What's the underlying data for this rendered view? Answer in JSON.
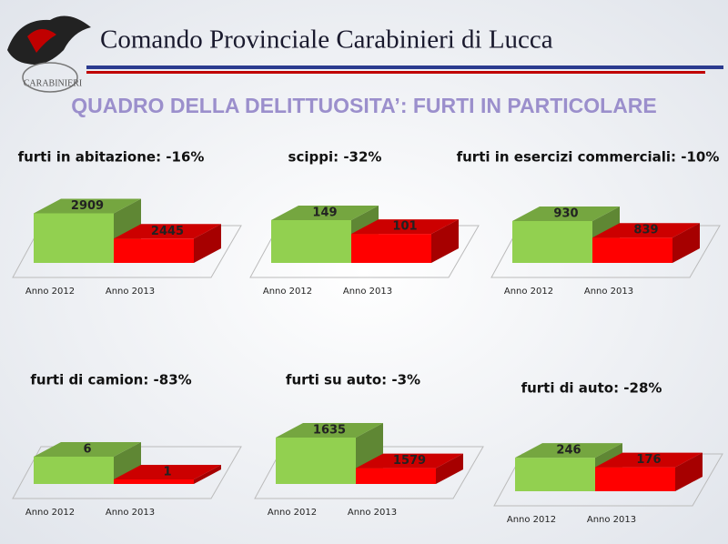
{
  "header": {
    "title": "Comando Provinciale Carabinieri di Lucca",
    "logo_text": "CARABINIERI",
    "subtitle": "QUADRO DELLA DELITTUOSITA’: FURTI IN PARTICOLARE"
  },
  "chart_data": [
    {
      "type": "bar",
      "title": "furti in abitazione: -16%",
      "categories": [
        "Anno 2012",
        "Anno 2013"
      ],
      "values": [
        2909,
        2445
      ],
      "colors": [
        "#92d050",
        "#ff0000"
      ],
      "ylim": [
        2000,
        3000
      ]
    },
    {
      "type": "bar",
      "title": "scippi: -32%",
      "categories": [
        "Anno 2012",
        "Anno 2013"
      ],
      "values": [
        149,
        101
      ],
      "colors": [
        "#92d050",
        "#ff0000"
      ],
      "ylim": [
        0,
        190
      ]
    },
    {
      "type": "bar",
      "title": "furti in esercizi commerciali: -10%",
      "categories": [
        "Anno 2012",
        "Anno 2013"
      ],
      "values": [
        930,
        839
      ],
      "colors": [
        "#92d050",
        "#ff0000"
      ],
      "ylim": [
        700,
        1000
      ]
    },
    {
      "type": "bar",
      "title": "furti di camion: -83%",
      "categories": [
        "Anno 2012",
        "Anno 2013"
      ],
      "values": [
        6,
        1
      ],
      "colors": [
        "#92d050",
        "#ff0000"
      ],
      "ylim": [
        0,
        12
      ]
    },
    {
      "type": "bar",
      "title": "furti su auto: -3%",
      "categories": [
        "Anno 2012",
        "Anno 2013"
      ],
      "values": [
        1635,
        1579
      ],
      "colors": [
        "#92d050",
        "#ff0000"
      ],
      "ylim": [
        1550,
        1650
      ]
    },
    {
      "type": "bar",
      "title": "furti di auto: -28%",
      "categories": [
        "Anno 2012",
        "Anno 2013"
      ],
      "values": [
        246,
        176
      ],
      "colors": [
        "#92d050",
        "#ff0000"
      ],
      "ylim": [
        0,
        400
      ]
    }
  ]
}
